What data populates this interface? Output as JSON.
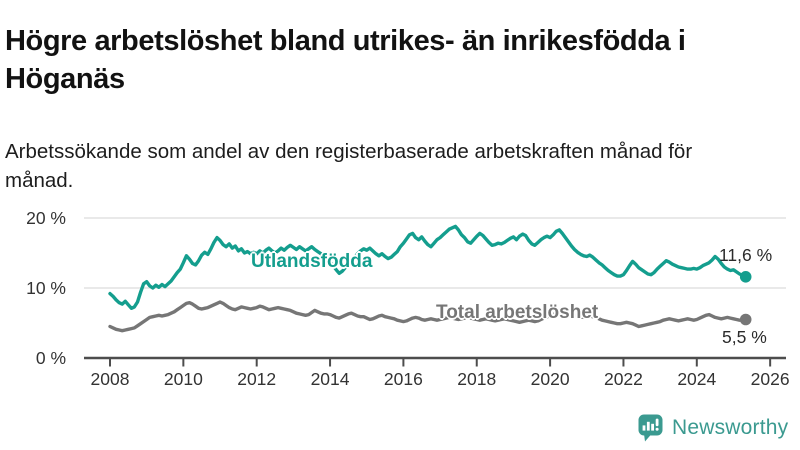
{
  "header": {
    "title": "Högre arbetslöshet bland utrikes- än inrikesfödda i Höganäs",
    "subtitle": "Arbetssökande som andel av den registerbaserade arbetskraften månad för månad."
  },
  "chart_data": {
    "type": "line",
    "title": "Högre arbetslöshet bland utrikes- än inrikesfödda i Höganäs",
    "subtitle": "Arbetssökande som andel av den registerbaserade arbetskraften månad för månad.",
    "unit": "%",
    "x_start_year": 2008,
    "x_step_months": 1,
    "xlim": [
      2007.3,
      2026.5
    ],
    "ylim": [
      0,
      21
    ],
    "grid": "horizontal",
    "x_tick_labels": [
      "2008",
      "2010",
      "2012",
      "2014",
      "2016",
      "2018",
      "2020",
      "2022",
      "2024",
      "2026"
    ],
    "y_ticks": [
      {
        "label": "20 %",
        "value": 20
      },
      {
        "label": "10 %",
        "value": 10
      },
      {
        "label": "0 %",
        "value": 0
      }
    ],
    "colors": {
      "grid": "#E2E2E2",
      "axis": "#4D4D4D",
      "tick_text": "#333333"
    },
    "series": [
      {
        "name": "Utlandsfödda",
        "color": "#149E8E",
        "end_label": "11,6 %",
        "final_value": 11.6,
        "values": [
          9.2,
          8.8,
          8.3,
          7.9,
          7.7,
          8.1,
          7.6,
          7.1,
          7.3,
          8.0,
          9.4,
          10.6,
          10.9,
          10.3,
          10.0,
          10.4,
          10.1,
          10.5,
          10.2,
          10.6,
          11.0,
          11.6,
          12.2,
          12.7,
          13.6,
          14.6,
          14.1,
          13.5,
          13.3,
          13.9,
          14.7,
          15.1,
          14.8,
          15.6,
          16.5,
          17.2,
          16.8,
          16.2,
          15.9,
          16.3,
          15.7,
          16.0,
          15.3,
          15.6,
          15.0,
          15.2,
          14.9,
          15.1,
          14.9,
          15.3,
          15.0,
          15.4,
          15.7,
          15.3,
          15.0,
          15.3,
          15.7,
          15.4,
          15.8,
          16.1,
          15.8,
          15.5,
          15.9,
          15.6,
          15.3,
          15.6,
          15.9,
          15.5,
          15.2,
          14.9,
          14.6,
          14.3,
          13.8,
          13.2,
          12.6,
          12.1,
          12.4,
          12.9,
          13.4,
          13.9,
          14.4,
          14.9,
          15.3,
          15.6,
          15.4,
          15.7,
          15.3,
          14.9,
          14.6,
          14.9,
          14.5,
          14.2,
          14.4,
          14.8,
          15.2,
          15.9,
          16.4,
          17.0,
          17.6,
          17.8,
          17.2,
          16.9,
          17.3,
          16.7,
          16.2,
          15.9,
          16.4,
          16.9,
          17.2,
          17.6,
          18.0,
          18.4,
          18.6,
          18.8,
          18.3,
          17.6,
          17.2,
          16.6,
          16.4,
          16.9,
          17.4,
          17.8,
          17.5,
          17.0,
          16.5,
          16.1,
          16.2,
          16.4,
          16.3,
          16.5,
          16.8,
          17.1,
          17.3,
          16.9,
          17.4,
          17.7,
          17.5,
          16.8,
          16.3,
          16.1,
          16.5,
          16.9,
          17.2,
          17.4,
          17.2,
          17.6,
          18.1,
          18.3,
          17.8,
          17.2,
          16.6,
          16.0,
          15.5,
          15.1,
          14.8,
          14.6,
          14.5,
          14.7,
          14.4,
          14.0,
          13.6,
          13.3,
          12.9,
          12.5,
          12.2,
          11.9,
          11.7,
          11.7,
          11.9,
          12.5,
          13.2,
          13.8,
          13.4,
          12.9,
          12.6,
          12.3,
          12.0,
          11.9,
          12.2,
          12.7,
          13.1,
          13.5,
          13.9,
          13.7,
          13.4,
          13.2,
          13.0,
          12.9,
          12.8,
          12.7,
          12.7,
          12.8,
          12.7,
          12.9,
          13.2,
          13.4,
          13.6,
          14.0,
          14.5,
          14.1,
          13.5,
          13.0,
          12.7,
          12.5,
          12.6,
          12.3,
          12.0,
          11.8,
          11.6
        ]
      },
      {
        "name": "Total arbetslöshet",
        "color": "#767676",
        "end_label": "5,5 %",
        "final_value": 5.5,
        "values": [
          4.5,
          4.3,
          4.1,
          4.0,
          3.9,
          4.0,
          4.1,
          4.2,
          4.3,
          4.6,
          4.9,
          5.2,
          5.5,
          5.8,
          5.9,
          6.0,
          6.1,
          6.0,
          6.1,
          6.2,
          6.4,
          6.6,
          6.9,
          7.2,
          7.5,
          7.8,
          7.9,
          7.7,
          7.4,
          7.1,
          7.0,
          7.1,
          7.2,
          7.4,
          7.6,
          7.8,
          8.0,
          7.8,
          7.5,
          7.2,
          7.0,
          6.9,
          7.1,
          7.3,
          7.2,
          7.1,
          7.0,
          7.1,
          7.2,
          7.4,
          7.3,
          7.1,
          6.9,
          7.0,
          7.1,
          7.2,
          7.1,
          7.0,
          6.9,
          6.8,
          6.6,
          6.4,
          6.3,
          6.2,
          6.1,
          6.2,
          6.5,
          6.8,
          6.6,
          6.4,
          6.3,
          6.3,
          6.2,
          6.0,
          5.8,
          5.7,
          5.9,
          6.1,
          6.3,
          6.4,
          6.2,
          6.0,
          5.9,
          5.9,
          5.7,
          5.5,
          5.6,
          5.8,
          6.0,
          6.1,
          5.9,
          5.8,
          5.7,
          5.6,
          5.4,
          5.3,
          5.2,
          5.3,
          5.5,
          5.7,
          5.8,
          5.7,
          5.5,
          5.4,
          5.5,
          5.6,
          5.5,
          5.4,
          5.5,
          5.6,
          5.7,
          5.8,
          5.7,
          5.6,
          5.5,
          5.6,
          5.7,
          5.8,
          5.7,
          5.6,
          5.5,
          5.4,
          5.5,
          5.6,
          5.5,
          5.4,
          5.3,
          5.4,
          5.5,
          5.6,
          5.5,
          5.4,
          5.3,
          5.2,
          5.1,
          5.2,
          5.3,
          5.4,
          5.3,
          5.2,
          5.3,
          5.5,
          5.7,
          5.9,
          6.0,
          6.2,
          6.5,
          6.6,
          6.5,
          6.4,
          6.3,
          6.2,
          6.1,
          6.0,
          5.9,
          5.8,
          5.9,
          6.0,
          5.9,
          5.8,
          5.6,
          5.4,
          5.3,
          5.2,
          5.1,
          5.0,
          4.9,
          4.9,
          5.0,
          5.1,
          5.0,
          4.9,
          4.7,
          4.5,
          4.6,
          4.7,
          4.8,
          4.9,
          5.0,
          5.1,
          5.2,
          5.4,
          5.5,
          5.6,
          5.5,
          5.4,
          5.3,
          5.4,
          5.5,
          5.6,
          5.5,
          5.4,
          5.5,
          5.7,
          5.9,
          6.1,
          6.2,
          6.0,
          5.8,
          5.7,
          5.6,
          5.7,
          5.8,
          5.7,
          5.6,
          5.5,
          5.4,
          5.4,
          5.5
        ]
      }
    ]
  },
  "footer": {
    "brand": "Newsworthy",
    "brand_color": "#3B9A90",
    "logo_icon": "bar-chart-speech-bubble-icon"
  }
}
